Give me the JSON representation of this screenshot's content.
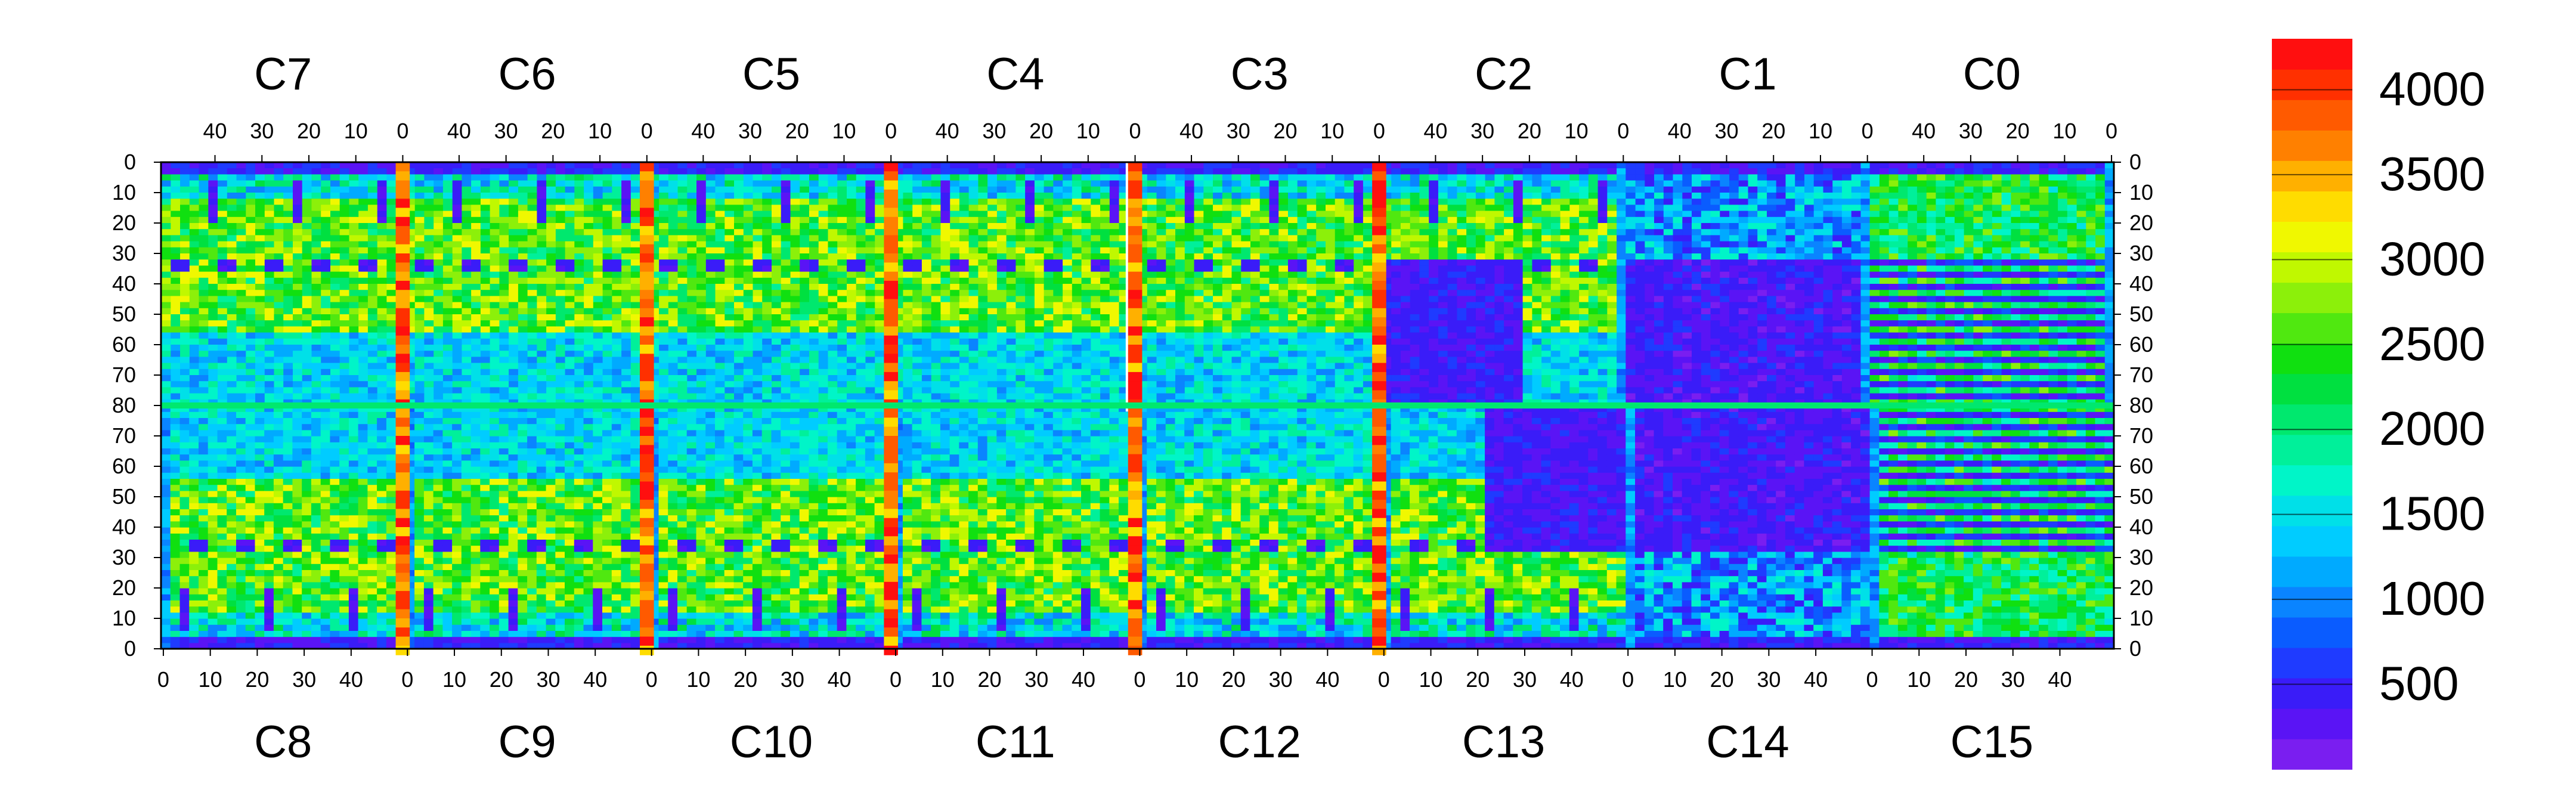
{
  "chart_data": {
    "type": "heatmap",
    "title": "",
    "xlabel": "",
    "ylabel": "",
    "top_chips": [
      "C7",
      "C6",
      "C5",
      "C4",
      "C3",
      "C2",
      "C1",
      "C0"
    ],
    "bottom_chips": [
      "C8",
      "C9",
      "C10",
      "C11",
      "C12",
      "C13",
      "C14",
      "C15"
    ],
    "chip_columns": 52,
    "rows_per_half": 80,
    "x_ticks_top": [
      "40",
      "30",
      "20",
      "10",
      "0"
    ],
    "x_ticks_bottom": [
      "0",
      "10",
      "20",
      "30",
      "40"
    ],
    "y_ticks_upper": [
      "0",
      "10",
      "20",
      "30",
      "40",
      "50",
      "60",
      "70",
      "80"
    ],
    "y_ticks_lower": [
      "70",
      "60",
      "50",
      "40",
      "30",
      "20",
      "10",
      "0"
    ],
    "z_range": [
      0,
      4300
    ],
    "colorbar_ticks": [
      "500",
      "1000",
      "1500",
      "2000",
      "2500",
      "3000",
      "3500",
      "4000"
    ],
    "colorbar_values": [
      500,
      1000,
      1500,
      2000,
      2500,
      3000,
      3500,
      4000
    ],
    "colorbar_colors": [
      "#7a1ef0",
      "#5a14f5",
      "#3a1cf8",
      "#1f3bff",
      "#0a5cff",
      "#0a84ff",
      "#00aaff",
      "#00ccff",
      "#00e0e8",
      "#00f5c8",
      "#00f09a",
      "#00e86e",
      "#00e040",
      "#10e010",
      "#50e810",
      "#8cf00a",
      "#c0f800",
      "#f0f800",
      "#ffdc00",
      "#ffb000",
      "#ff8000",
      "#ff5a00",
      "#ff3000",
      "#ff0f0f"
    ],
    "colors": {
      "low": "#7a1ef0",
      "mid_low": "#1a8cff",
      "mid": "#00e8b0",
      "mid_high": "#70f010",
      "high": "#ff1010"
    },
    "notable_features": {
      "dead_column_chip": "C4",
      "dead_column_value": 0,
      "hot_column_value": 4200,
      "low_region_chips": [
        "C13",
        "C14"
      ]
    }
  }
}
